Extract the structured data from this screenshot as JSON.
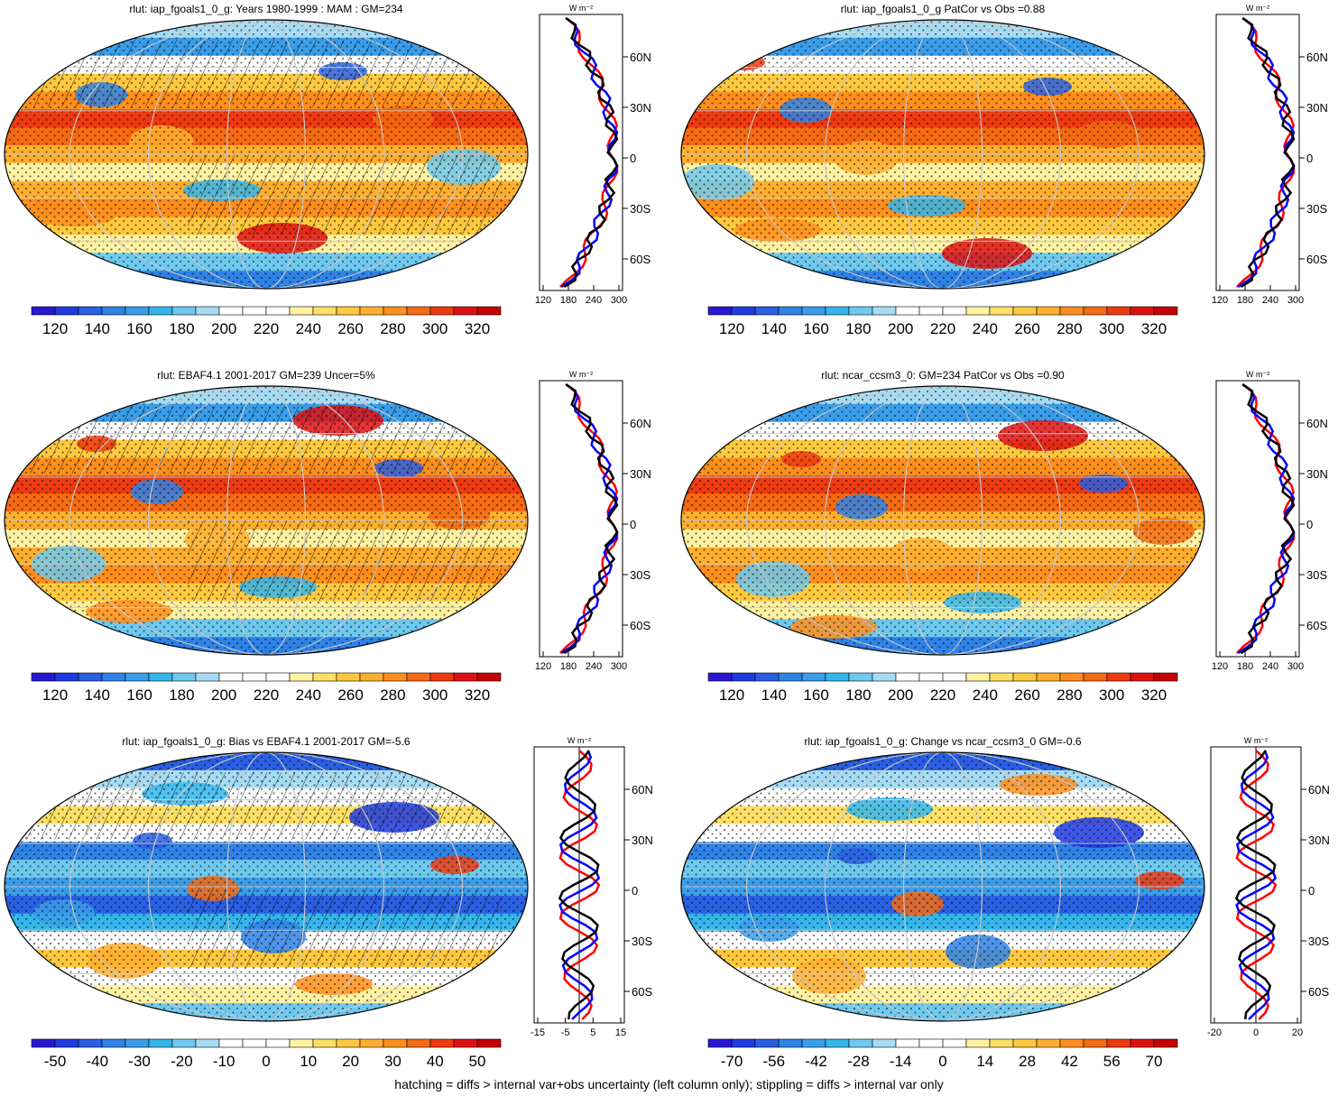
{
  "variable": "rlut",
  "zonal_unit": "W m⁻²",
  "lat_tick_labels": [
    "60N",
    "30N",
    "0",
    "30S",
    "60S"
  ],
  "colors": {
    "palette": [
      "#2a17d6",
      "#1f3ae0",
      "#2a5fe3",
      "#2f82e6",
      "#3a9de9",
      "#34b6ec",
      "#6fc9ef",
      "#a6dcf4",
      "#ffffff",
      "#ffffff",
      "#fff2a3",
      "#ffe066",
      "#ffc93f",
      "#ffae2e",
      "#ff8f1c",
      "#f56a12",
      "#ee3a10",
      "#e01010",
      "#c60000"
    ],
    "graticule": "#c8c8c8",
    "coast": "#000000",
    "line_red": "#ff0000",
    "line_blue": "#0000ff",
    "line_black": "#000000"
  },
  "panels": [
    {
      "id": "model-clim",
      "title": "rlut: iap_fgoals1_0_g: Years 1980-1999 : MAM : GM=234",
      "kind": "abs",
      "hatch": true,
      "colorbar": [
        "120",
        "140",
        "160",
        "180",
        "200",
        "220",
        "240",
        "260",
        "280",
        "300",
        "320"
      ],
      "profile_ticks": [
        "120",
        "180",
        "240",
        "300"
      ],
      "zero_line": false
    },
    {
      "id": "model2-clim",
      "title": "rlut: iap_fgoals1_0_g PatCor vs Obs =0.88",
      "kind": "abs",
      "hatch": false,
      "colorbar": [
        "120",
        "140",
        "160",
        "180",
        "200",
        "220",
        "240",
        "260",
        "280",
        "300",
        "320"
      ],
      "profile_ticks": [
        "120",
        "180",
        "240",
        "300"
      ],
      "zero_line": false
    },
    {
      "id": "obs-clim",
      "title": "rlut: EBAF4.1 2001-2017 GM=239 Uncer=5%",
      "kind": "abs",
      "hatch": true,
      "colorbar": [
        "120",
        "140",
        "160",
        "180",
        "200",
        "220",
        "240",
        "260",
        "280",
        "300",
        "320"
      ],
      "profile_ticks": [
        "120",
        "180",
        "240",
        "300"
      ],
      "zero_line": false
    },
    {
      "id": "ref-model-clim",
      "title": "rlut: ncar_ccsm3_0: GM=234 PatCor vs Obs =0.90",
      "kind": "abs",
      "hatch": false,
      "colorbar": [
        "120",
        "140",
        "160",
        "180",
        "200",
        "220",
        "240",
        "260",
        "280",
        "300",
        "320"
      ],
      "profile_ticks": [
        "120",
        "180",
        "240",
        "300"
      ],
      "zero_line": false
    },
    {
      "id": "bias",
      "title": "rlut: iap_fgoals1_0_g: Bias vs EBAF4.1 2001-2017 GM=-5.6",
      "kind": "diff",
      "hatch": true,
      "colorbar": [
        "-50",
        "-40",
        "-30",
        "-20",
        "-10",
        "0",
        "10",
        "20",
        "30",
        "40",
        "50"
      ],
      "profile_ticks": [
        "-15",
        "-5",
        "5",
        "15"
      ],
      "zero_line": true
    },
    {
      "id": "change",
      "title": "rlut: iap_fgoals1_0_g: Change vs ncar_ccsm3_0 GM=-0.6",
      "kind": "diff",
      "hatch": false,
      "colorbar": [
        "-70",
        "-56",
        "-42",
        "-28",
        "-14",
        "0",
        "14",
        "28",
        "42",
        "56",
        "70"
      ],
      "profile_ticks": [
        "-20",
        "0",
        "20"
      ],
      "zero_line": true
    }
  ],
  "footer": "hatching = diffs > internal var+obs uncertainty (left column only); stippling = diffs > internal var only"
}
